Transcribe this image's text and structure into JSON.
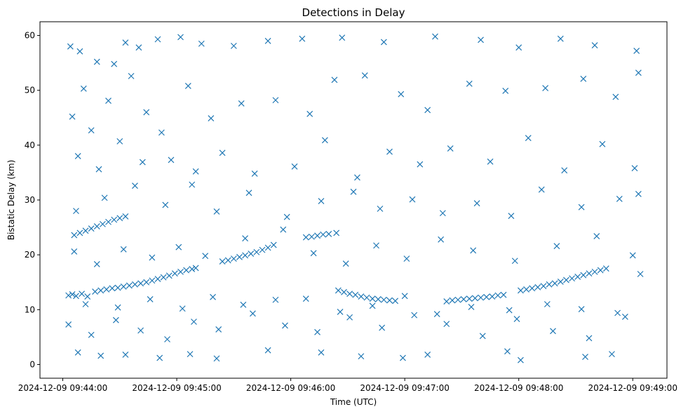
{
  "chart_data": {
    "type": "scatter",
    "title": "Detections in Delay",
    "xlabel": "Time (UTC)",
    "ylabel": "Bistatic Delay (km)",
    "x_axis": "time",
    "x_range": [
      "2024-12-09 09:43:48",
      "2024-12-09 09:49:18"
    ],
    "ylim": [
      -2.5,
      62.5
    ],
    "x_ticks": [
      "2024-12-09 09:44:00",
      "2024-12-09 09:45:00",
      "2024-12-09 09:46:00",
      "2024-12-09 09:47:00",
      "2024-12-09 09:48:00",
      "2024-12-09 09:49:00"
    ],
    "y_ticks": [
      0,
      10,
      20,
      30,
      40,
      50,
      60
    ],
    "grid": false,
    "marker": "x",
    "color": "#1f77b4",
    "series": [
      {
        "points": [
          [
            "2024-12-09 09:44:03",
            12.6
          ],
          [
            "2024-12-09 09:44:05",
            12.8
          ],
          [
            "2024-12-09 09:44:07",
            12.5
          ],
          [
            "2024-12-09 09:44:10",
            12.9
          ],
          [
            "2024-12-09 09:44:13",
            12.4
          ],
          [
            "2024-12-09 09:44:17",
            13.3
          ],
          [
            "2024-12-09 09:44:20",
            13.5
          ],
          [
            "2024-12-09 09:44:23",
            13.7
          ],
          [
            "2024-12-09 09:44:26",
            13.9
          ],
          [
            "2024-12-09 09:44:29",
            14.0
          ],
          [
            "2024-12-09 09:44:32",
            14.2
          ],
          [
            "2024-12-09 09:44:35",
            14.4
          ],
          [
            "2024-12-09 09:44:38",
            14.6
          ],
          [
            "2024-12-09 09:44:41",
            14.8
          ],
          [
            "2024-12-09 09:44:44",
            15.0
          ],
          [
            "2024-12-09 09:44:47",
            15.3
          ],
          [
            "2024-12-09 09:44:50",
            15.6
          ],
          [
            "2024-12-09 09:44:53",
            15.9
          ],
          [
            "2024-12-09 09:44:56",
            16.2
          ],
          [
            "2024-12-09 09:44:59",
            16.6
          ],
          [
            "2024-12-09 09:45:02",
            16.9
          ],
          [
            "2024-12-09 09:45:05",
            17.2
          ],
          [
            "2024-12-09 09:45:08",
            17.4
          ],
          [
            "2024-12-09 09:45:10",
            17.6
          ],
          [
            "2024-12-09 09:45:24",
            18.8
          ],
          [
            "2024-12-09 09:45:27",
            19.0
          ],
          [
            "2024-12-09 09:45:30",
            19.3
          ],
          [
            "2024-12-09 09:45:33",
            19.6
          ],
          [
            "2024-12-09 09:45:36",
            19.9
          ],
          [
            "2024-12-09 09:45:39",
            20.2
          ],
          [
            "2024-12-09 09:45:42",
            20.5
          ],
          [
            "2024-12-09 09:45:45",
            20.9
          ],
          [
            "2024-12-09 09:45:48",
            21.3
          ],
          [
            "2024-12-09 09:45:51",
            21.8
          ],
          [
            "2024-12-09 09:46:08",
            23.2
          ],
          [
            "2024-12-09 09:46:11",
            23.3
          ],
          [
            "2024-12-09 09:46:14",
            23.5
          ],
          [
            "2024-12-09 09:46:17",
            23.7
          ],
          [
            "2024-12-09 09:46:20",
            23.8
          ],
          [
            "2024-12-09 09:46:24",
            24.0
          ],
          [
            "2024-12-09 09:46:25",
            13.5
          ],
          [
            "2024-12-09 09:46:28",
            13.2
          ],
          [
            "2024-12-09 09:46:31",
            12.9
          ],
          [
            "2024-12-09 09:46:34",
            12.7
          ],
          [
            "2024-12-09 09:46:37",
            12.4
          ],
          [
            "2024-12-09 09:46:40",
            12.2
          ],
          [
            "2024-12-09 09:46:43",
            12.0
          ],
          [
            "2024-12-09 09:46:46",
            11.9
          ],
          [
            "2024-12-09 09:46:49",
            11.8
          ],
          [
            "2024-12-09 09:46:52",
            11.7
          ],
          [
            "2024-12-09 09:46:55",
            11.6
          ],
          [
            "2024-12-09 09:47:22",
            11.5
          ],
          [
            "2024-12-09 09:47:25",
            11.7
          ],
          [
            "2024-12-09 09:47:28",
            11.8
          ],
          [
            "2024-12-09 09:47:31",
            11.9
          ],
          [
            "2024-12-09 09:47:34",
            12.0
          ],
          [
            "2024-12-09 09:47:37",
            12.1
          ],
          [
            "2024-12-09 09:47:40",
            12.2
          ],
          [
            "2024-12-09 09:47:43",
            12.3
          ],
          [
            "2024-12-09 09:47:46",
            12.4
          ],
          [
            "2024-12-09 09:47:49",
            12.6
          ],
          [
            "2024-12-09 09:47:52",
            12.7
          ],
          [
            "2024-12-09 09:48:01",
            13.5
          ],
          [
            "2024-12-09 09:48:04",
            13.7
          ],
          [
            "2024-12-09 09:48:07",
            13.9
          ],
          [
            "2024-12-09 09:48:10",
            14.1
          ],
          [
            "2024-12-09 09:48:13",
            14.3
          ],
          [
            "2024-12-09 09:48:16",
            14.6
          ],
          [
            "2024-12-09 09:48:19",
            14.8
          ],
          [
            "2024-12-09 09:48:22",
            15.1
          ],
          [
            "2024-12-09 09:48:25",
            15.4
          ],
          [
            "2024-12-09 09:48:28",
            15.7
          ],
          [
            "2024-12-09 09:48:31",
            16.0
          ],
          [
            "2024-12-09 09:48:34",
            16.3
          ],
          [
            "2024-12-09 09:48:37",
            16.6
          ],
          [
            "2024-12-09 09:48:40",
            16.9
          ],
          [
            "2024-12-09 09:48:43",
            17.2
          ],
          [
            "2024-12-09 09:48:46",
            17.5
          ],
          [
            "2024-12-09 09:44:06",
            23.6
          ],
          [
            "2024-12-09 09:44:09",
            24.0
          ],
          [
            "2024-12-09 09:44:12",
            24.4
          ],
          [
            "2024-12-09 09:44:15",
            24.8
          ],
          [
            "2024-12-09 09:44:18",
            25.2
          ],
          [
            "2024-12-09 09:44:21",
            25.6
          ],
          [
            "2024-12-09 09:44:24",
            26.0
          ],
          [
            "2024-12-09 09:44:27",
            26.4
          ],
          [
            "2024-12-09 09:44:30",
            26.7
          ],
          [
            "2024-12-09 09:44:33",
            27.0
          ],
          [
            "2024-12-09 09:44:04",
            58.0
          ],
          [
            "2024-12-09 09:44:09",
            57.1
          ],
          [
            "2024-12-09 09:44:18",
            55.2
          ],
          [
            "2024-12-09 09:44:27",
            54.8
          ],
          [
            "2024-12-09 09:44:33",
            58.7
          ],
          [
            "2024-12-09 09:44:40",
            57.8
          ],
          [
            "2024-12-09 09:44:50",
            59.3
          ],
          [
            "2024-12-09 09:45:02",
            59.7
          ],
          [
            "2024-12-09 09:45:13",
            58.5
          ],
          [
            "2024-12-09 09:45:30",
            58.1
          ],
          [
            "2024-12-09 09:45:48",
            59.0
          ],
          [
            "2024-12-09 09:46:06",
            59.4
          ],
          [
            "2024-12-09 09:46:27",
            59.6
          ],
          [
            "2024-12-09 09:46:49",
            58.8
          ],
          [
            "2024-12-09 09:47:16",
            59.8
          ],
          [
            "2024-12-09 09:47:40",
            59.2
          ],
          [
            "2024-12-09 09:48:00",
            57.8
          ],
          [
            "2024-12-09 09:48:22",
            59.4
          ],
          [
            "2024-12-09 09:48:40",
            58.2
          ],
          [
            "2024-12-09 09:49:02",
            57.2
          ],
          [
            "2024-12-09 09:44:05",
            45.2
          ],
          [
            "2024-12-09 09:44:11",
            50.3
          ],
          [
            "2024-12-09 09:44:15",
            42.7
          ],
          [
            "2024-12-09 09:44:24",
            48.1
          ],
          [
            "2024-12-09 09:44:36",
            52.6
          ],
          [
            "2024-12-09 09:44:44",
            46.0
          ],
          [
            "2024-12-09 09:44:52",
            42.3
          ],
          [
            "2024-12-09 09:45:06",
            50.8
          ],
          [
            "2024-12-09 09:45:18",
            44.9
          ],
          [
            "2024-12-09 09:45:34",
            47.6
          ],
          [
            "2024-12-09 09:45:52",
            48.2
          ],
          [
            "2024-12-09 09:46:10",
            45.7
          ],
          [
            "2024-12-09 09:46:23",
            51.9
          ],
          [
            "2024-12-09 09:46:39",
            52.7
          ],
          [
            "2024-12-09 09:46:58",
            49.3
          ],
          [
            "2024-12-09 09:47:12",
            46.4
          ],
          [
            "2024-12-09 09:47:34",
            51.2
          ],
          [
            "2024-12-09 09:47:53",
            49.9
          ],
          [
            "2024-12-09 09:48:14",
            50.4
          ],
          [
            "2024-12-09 09:48:34",
            52.1
          ],
          [
            "2024-12-09 09:48:51",
            48.8
          ],
          [
            "2024-12-09 09:49:03",
            53.2
          ],
          [
            "2024-12-09 09:44:08",
            38.0
          ],
          [
            "2024-12-09 09:44:19",
            35.6
          ],
          [
            "2024-12-09 09:44:30",
            40.7
          ],
          [
            "2024-12-09 09:44:42",
            36.9
          ],
          [
            "2024-12-09 09:44:57",
            37.3
          ],
          [
            "2024-12-09 09:45:10",
            35.2
          ],
          [
            "2024-12-09 09:45:24",
            38.6
          ],
          [
            "2024-12-09 09:45:41",
            34.8
          ],
          [
            "2024-12-09 09:46:02",
            36.1
          ],
          [
            "2024-12-09 09:46:18",
            40.9
          ],
          [
            "2024-12-09 09:46:35",
            34.1
          ],
          [
            "2024-12-09 09:46:52",
            38.8
          ],
          [
            "2024-12-09 09:47:08",
            36.5
          ],
          [
            "2024-12-09 09:47:24",
            39.4
          ],
          [
            "2024-12-09 09:47:45",
            37.0
          ],
          [
            "2024-12-09 09:48:05",
            41.3
          ],
          [
            "2024-12-09 09:48:24",
            35.4
          ],
          [
            "2024-12-09 09:48:44",
            40.2
          ],
          [
            "2024-12-09 09:49:01",
            35.8
          ],
          [
            "2024-12-09 09:44:07",
            28.0
          ],
          [
            "2024-12-09 09:44:22",
            30.4
          ],
          [
            "2024-12-09 09:44:38",
            32.6
          ],
          [
            "2024-12-09 09:44:54",
            29.1
          ],
          [
            "2024-12-09 09:45:08",
            32.8
          ],
          [
            "2024-12-09 09:45:21",
            27.9
          ],
          [
            "2024-12-09 09:45:38",
            31.3
          ],
          [
            "2024-12-09 09:45:58",
            26.9
          ],
          [
            "2024-12-09 09:46:16",
            29.8
          ],
          [
            "2024-12-09 09:46:33",
            31.5
          ],
          [
            "2024-12-09 09:46:47",
            28.4
          ],
          [
            "2024-12-09 09:47:04",
            30.1
          ],
          [
            "2024-12-09 09:47:20",
            27.6
          ],
          [
            "2024-12-09 09:47:38",
            29.4
          ],
          [
            "2024-12-09 09:47:56",
            27.1
          ],
          [
            "2024-12-09 09:48:12",
            31.9
          ],
          [
            "2024-12-09 09:48:33",
            28.7
          ],
          [
            "2024-12-09 09:48:53",
            30.2
          ],
          [
            "2024-12-09 09:49:03",
            31.1
          ],
          [
            "2024-12-09 09:44:06",
            20.6
          ],
          [
            "2024-12-09 09:44:18",
            18.3
          ],
          [
            "2024-12-09 09:44:32",
            21.0
          ],
          [
            "2024-12-09 09:44:47",
            19.5
          ],
          [
            "2024-12-09 09:45:01",
            21.4
          ],
          [
            "2024-12-09 09:45:15",
            19.8
          ],
          [
            "2024-12-09 09:45:36",
            23.0
          ],
          [
            "2024-12-09 09:45:56",
            24.6
          ],
          [
            "2024-12-09 09:46:12",
            20.3
          ],
          [
            "2024-12-09 09:46:29",
            18.4
          ],
          [
            "2024-12-09 09:46:45",
            21.7
          ],
          [
            "2024-12-09 09:47:01",
            19.3
          ],
          [
            "2024-12-09 09:47:19",
            22.8
          ],
          [
            "2024-12-09 09:47:36",
            20.8
          ],
          [
            "2024-12-09 09:47:58",
            18.9
          ],
          [
            "2024-12-09 09:48:20",
            21.6
          ],
          [
            "2024-12-09 09:48:41",
            23.4
          ],
          [
            "2024-12-09 09:49:00",
            19.9
          ],
          [
            "2024-12-09 09:44:03",
            7.3
          ],
          [
            "2024-12-09 09:44:15",
            5.4
          ],
          [
            "2024-12-09 09:44:28",
            8.1
          ],
          [
            "2024-12-09 09:44:41",
            6.2
          ],
          [
            "2024-12-09 09:44:55",
            4.6
          ],
          [
            "2024-12-09 09:45:09",
            7.8
          ],
          [
            "2024-12-09 09:45:22",
            6.4
          ],
          [
            "2024-12-09 09:45:40",
            9.3
          ],
          [
            "2024-12-09 09:45:57",
            7.1
          ],
          [
            "2024-12-09 09:46:14",
            5.9
          ],
          [
            "2024-12-09 09:46:31",
            8.6
          ],
          [
            "2024-12-09 09:46:48",
            6.7
          ],
          [
            "2024-12-09 09:47:05",
            9.0
          ],
          [
            "2024-12-09 09:47:22",
            7.4
          ],
          [
            "2024-12-09 09:47:41",
            5.2
          ],
          [
            "2024-12-09 09:47:59",
            8.3
          ],
          [
            "2024-12-09 09:48:18",
            6.1
          ],
          [
            "2024-12-09 09:48:37",
            4.8
          ],
          [
            "2024-12-09 09:48:56",
            8.7
          ],
          [
            "2024-12-09 09:44:08",
            2.2
          ],
          [
            "2024-12-09 09:44:20",
            1.6
          ],
          [
            "2024-12-09 09:44:33",
            1.8
          ],
          [
            "2024-12-09 09:44:51",
            1.2
          ],
          [
            "2024-12-09 09:45:07",
            1.9
          ],
          [
            "2024-12-09 09:45:21",
            1.1
          ],
          [
            "2024-12-09 09:45:48",
            2.6
          ],
          [
            "2024-12-09 09:46:16",
            2.2
          ],
          [
            "2024-12-09 09:46:37",
            1.5
          ],
          [
            "2024-12-09 09:46:59",
            1.2
          ],
          [
            "2024-12-09 09:47:12",
            1.8
          ],
          [
            "2024-12-09 09:47:54",
            2.4
          ],
          [
            "2024-12-09 09:48:01",
            0.8
          ],
          [
            "2024-12-09 09:48:35",
            1.4
          ],
          [
            "2024-12-09 09:48:49",
            1.9
          ],
          [
            "2024-12-09 09:44:12",
            11.0
          ],
          [
            "2024-12-09 09:44:29",
            10.4
          ],
          [
            "2024-12-09 09:44:46",
            11.9
          ],
          [
            "2024-12-09 09:45:03",
            10.2
          ],
          [
            "2024-12-09 09:45:19",
            12.3
          ],
          [
            "2024-12-09 09:45:35",
            10.9
          ],
          [
            "2024-12-09 09:45:52",
            11.8
          ],
          [
            "2024-12-09 09:46:08",
            12.0
          ],
          [
            "2024-12-09 09:46:26",
            9.6
          ],
          [
            "2024-12-09 09:46:43",
            10.7
          ],
          [
            "2024-12-09 09:47:00",
            12.5
          ],
          [
            "2024-12-09 09:47:17",
            9.2
          ],
          [
            "2024-12-09 09:47:35",
            10.5
          ],
          [
            "2024-12-09 09:47:55",
            9.9
          ],
          [
            "2024-12-09 09:48:15",
            11.0
          ],
          [
            "2024-12-09 09:48:33",
            10.1
          ],
          [
            "2024-12-09 09:48:52",
            9.4
          ],
          [
            "2024-12-09 09:49:04",
            16.5
          ]
        ]
      }
    ]
  }
}
